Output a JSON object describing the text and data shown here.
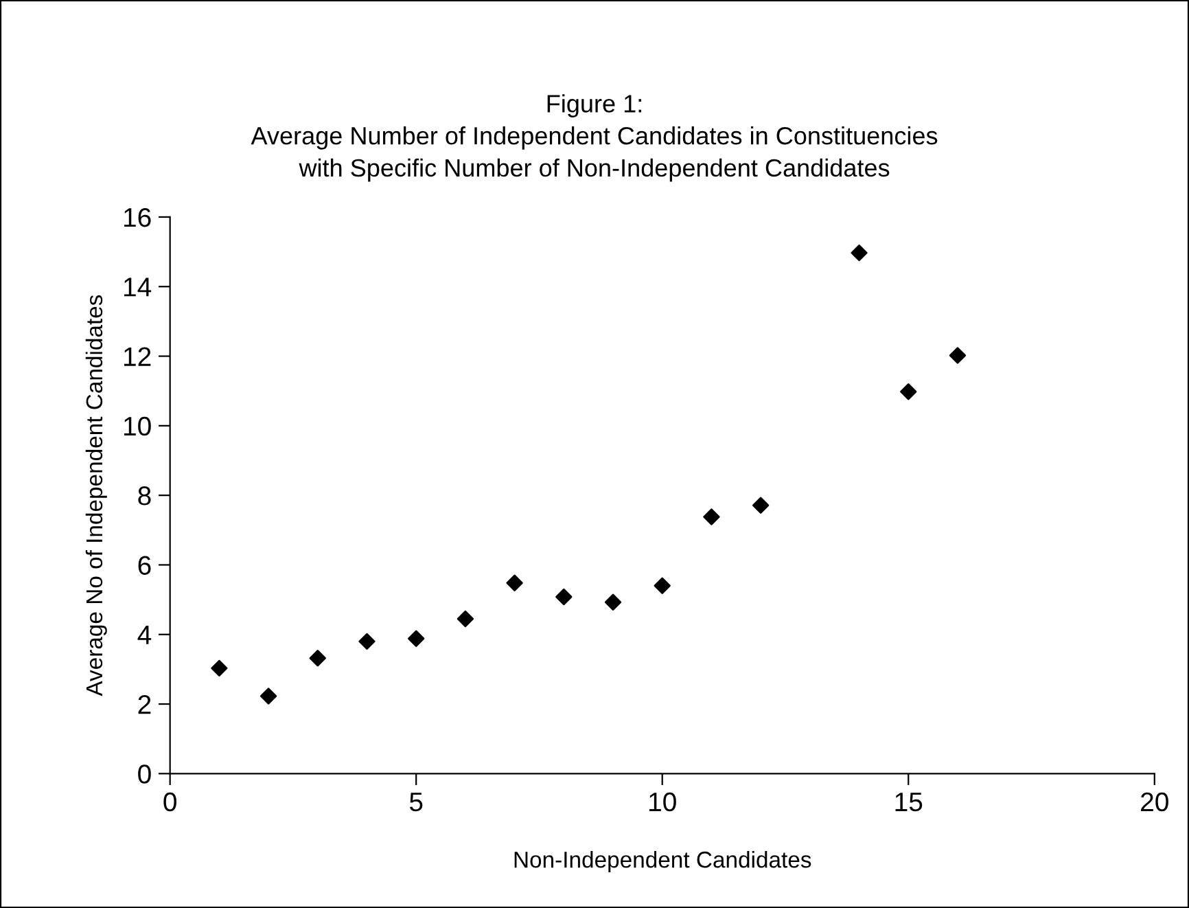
{
  "chart_data": {
    "type": "scatter",
    "title": "Figure 1:\nAverage Number of Independent Candidates in Constituencies\nwith Specific Number of Non-Independent Candidates",
    "xlabel": "Non-Independent Candidates",
    "ylabel": "Average No of Independent Candidates",
    "x": [
      1,
      2,
      3,
      4,
      5,
      6,
      7,
      8,
      9,
      10,
      11,
      12,
      14,
      15,
      16
    ],
    "values": [
      3.03,
      2.23,
      3.32,
      3.8,
      3.88,
      4.45,
      5.48,
      5.08,
      4.93,
      5.4,
      7.38,
      7.71,
      14.97,
      10.98,
      12.02
    ],
    "color": "#000000",
    "marker": "diamond",
    "xlim": [
      0,
      20
    ],
    "xticks": [
      0,
      5,
      10,
      15,
      20
    ],
    "ylim": [
      0,
      16
    ],
    "yticks": [
      0,
      2,
      4,
      6,
      8,
      10,
      12,
      14,
      16
    ],
    "grid": false,
    "legend": false
  }
}
